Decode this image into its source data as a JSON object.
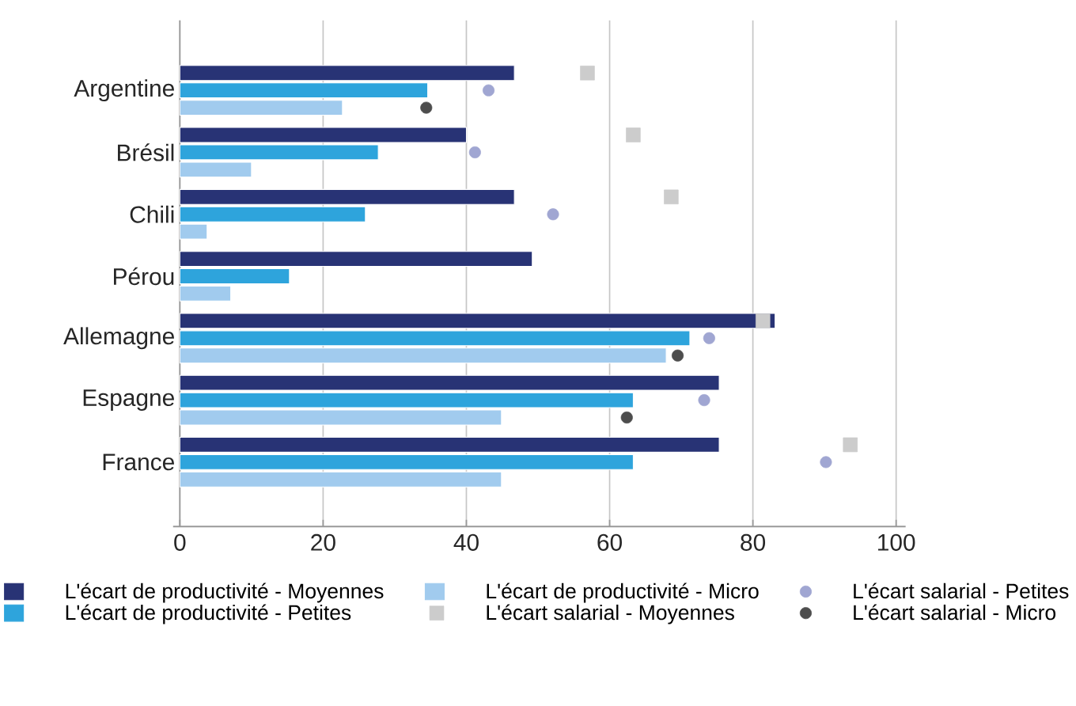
{
  "chart_data": {
    "type": "bar",
    "orientation": "horizontal",
    "categories": [
      "Argentine",
      "Brésil",
      "Chili",
      "Pérou",
      "Allemagne",
      "Espagne",
      "France"
    ],
    "series": [
      {
        "name": "L'écart de productivité - Moyennes",
        "color": "#283375",
        "values": [
          46.7,
          40,
          46.7,
          49.2,
          83.1,
          75.3,
          75.3
        ]
      },
      {
        "name": "L'écart de productivité - Petites",
        "color": "#2ea4dc",
        "values": [
          34.6,
          27.7,
          25.9,
          15.3,
          71.2,
          63.3,
          63.3
        ]
      },
      {
        "name": "L'écart de productivité - Micro",
        "color": "#a1cbee",
        "values": [
          22.7,
          10,
          3.8,
          7.1,
          67.9,
          44.9,
          44.9
        ]
      },
      {
        "name": "L'écart salarial - Moyennes",
        "type": "scatter",
        "marker": "square",
        "color": "#cccccc",
        "values": [
          56.9,
          63.3,
          68.6,
          null,
          81.4,
          null,
          93.6
        ]
      },
      {
        "name": "L'écart salarial - Petites",
        "type": "scatter",
        "marker": "circle",
        "color": "#a0a6d2",
        "values": [
          43.1,
          41.2,
          52.1,
          null,
          73.9,
          73.2,
          90.2
        ]
      },
      {
        "name": "L'écart salarial - Micro",
        "type": "scatter",
        "marker": "circle",
        "color": "#4d4d4d",
        "values": [
          34.4,
          null,
          null,
          null,
          69.5,
          62.4,
          null
        ]
      }
    ],
    "xlim": [
      0,
      100
    ],
    "xticks": [
      0,
      20,
      40,
      60,
      80,
      100
    ],
    "grid": "x",
    "legend": "bottom"
  }
}
